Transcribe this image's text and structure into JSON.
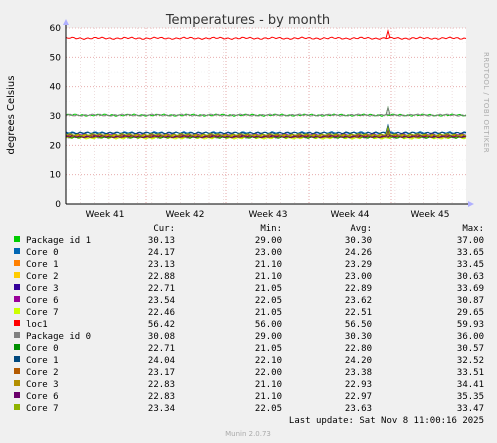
{
  "chart_data": {
    "type": "line",
    "title": "Temperatures - by month",
    "ylabel": "degrees Celsius",
    "ylim": [
      0,
      60
    ],
    "yticks": [
      "0",
      "10",
      "20",
      "30",
      "40",
      "50",
      "60"
    ],
    "x_tick_labels": [
      "Week 41",
      "Week 42",
      "Week 43",
      "Week 44",
      "Week 45"
    ],
    "side_text": "RRDTOOL / TOBI OETIKER",
    "legend_headers": {
      "cur": "Cur:",
      "min": "Min:",
      "avg": "Avg:",
      "max": "Max:"
    },
    "series": [
      {
        "name": "Package id 1",
        "color": "#00cc00",
        "cur": "30.13",
        "min": "29.00",
        "avg": "30.30",
        "max": "37.00",
        "level": 30.3,
        "spike": 37.0
      },
      {
        "name": "Core 0",
        "color": "#0066b3",
        "cur": "24.17",
        "min": "23.00",
        "avg": "24.26",
        "max": "33.65",
        "level": 24.26,
        "spike": 33.65
      },
      {
        "name": "Core 1",
        "color": "#ff8000",
        "cur": "23.13",
        "min": "21.10",
        "avg": "23.29",
        "max": "33.45",
        "level": 23.29,
        "spike": 33.45
      },
      {
        "name": "Core 2",
        "color": "#ffcc00",
        "cur": "22.88",
        "min": "21.10",
        "avg": "23.00",
        "max": "30.63",
        "level": 23.0,
        "spike": 30.63
      },
      {
        "name": "Core 3",
        "color": "#330099",
        "cur": "22.71",
        "min": "21.05",
        "avg": "22.89",
        "max": "33.69",
        "level": 22.89,
        "spike": 33.69
      },
      {
        "name": "Core 6",
        "color": "#990099",
        "cur": "23.54",
        "min": "22.05",
        "avg": "23.62",
        "max": "30.87",
        "level": 23.62,
        "spike": 30.87
      },
      {
        "name": "Core 7",
        "color": "#ccff00",
        "cur": "22.46",
        "min": "21.05",
        "avg": "22.51",
        "max": "29.65",
        "level": 22.51,
        "spike": 29.65
      },
      {
        "name": "loc1",
        "color": "#ff0000",
        "cur": "56.42",
        "min": "56.00",
        "avg": "56.50",
        "max": "59.93",
        "level": 56.5,
        "spike": 59.93
      },
      {
        "name": "Package id 0",
        "color": "#808080",
        "cur": "30.08",
        "min": "29.00",
        "avg": "30.30",
        "max": "36.00",
        "level": 30.3,
        "spike": 36.0
      },
      {
        "name": "Core 0",
        "color": "#008f00",
        "cur": "22.71",
        "min": "21.05",
        "avg": "22.80",
        "max": "30.57",
        "level": 22.8,
        "spike": 30.57
      },
      {
        "name": "Core 1",
        "color": "#00487d",
        "cur": "24.04",
        "min": "22.10",
        "avg": "24.20",
        "max": "32.52",
        "level": 24.2,
        "spike": 32.52
      },
      {
        "name": "Core 2",
        "color": "#b35a00",
        "cur": "23.17",
        "min": "22.00",
        "avg": "23.38",
        "max": "33.51",
        "level": 23.38,
        "spike": 33.51
      },
      {
        "name": "Core 3",
        "color": "#b38f00",
        "cur": "22.83",
        "min": "21.10",
        "avg": "22.93",
        "max": "34.41",
        "level": 22.93,
        "spike": 34.41
      },
      {
        "name": "Core 6",
        "color": "#6b006b",
        "cur": "22.83",
        "min": "21.10",
        "avg": "22.97",
        "max": "35.35",
        "level": 22.97,
        "spike": 35.35
      },
      {
        "name": "Core 7",
        "color": "#8fb300",
        "cur": "23.34",
        "min": "22.05",
        "avg": "23.63",
        "max": "33.47",
        "level": 23.63,
        "spike": 33.47
      }
    ],
    "last_update": "Last update: Sat Nov  8 11:00:16 2025",
    "footer": "Munin 2.0.73"
  }
}
